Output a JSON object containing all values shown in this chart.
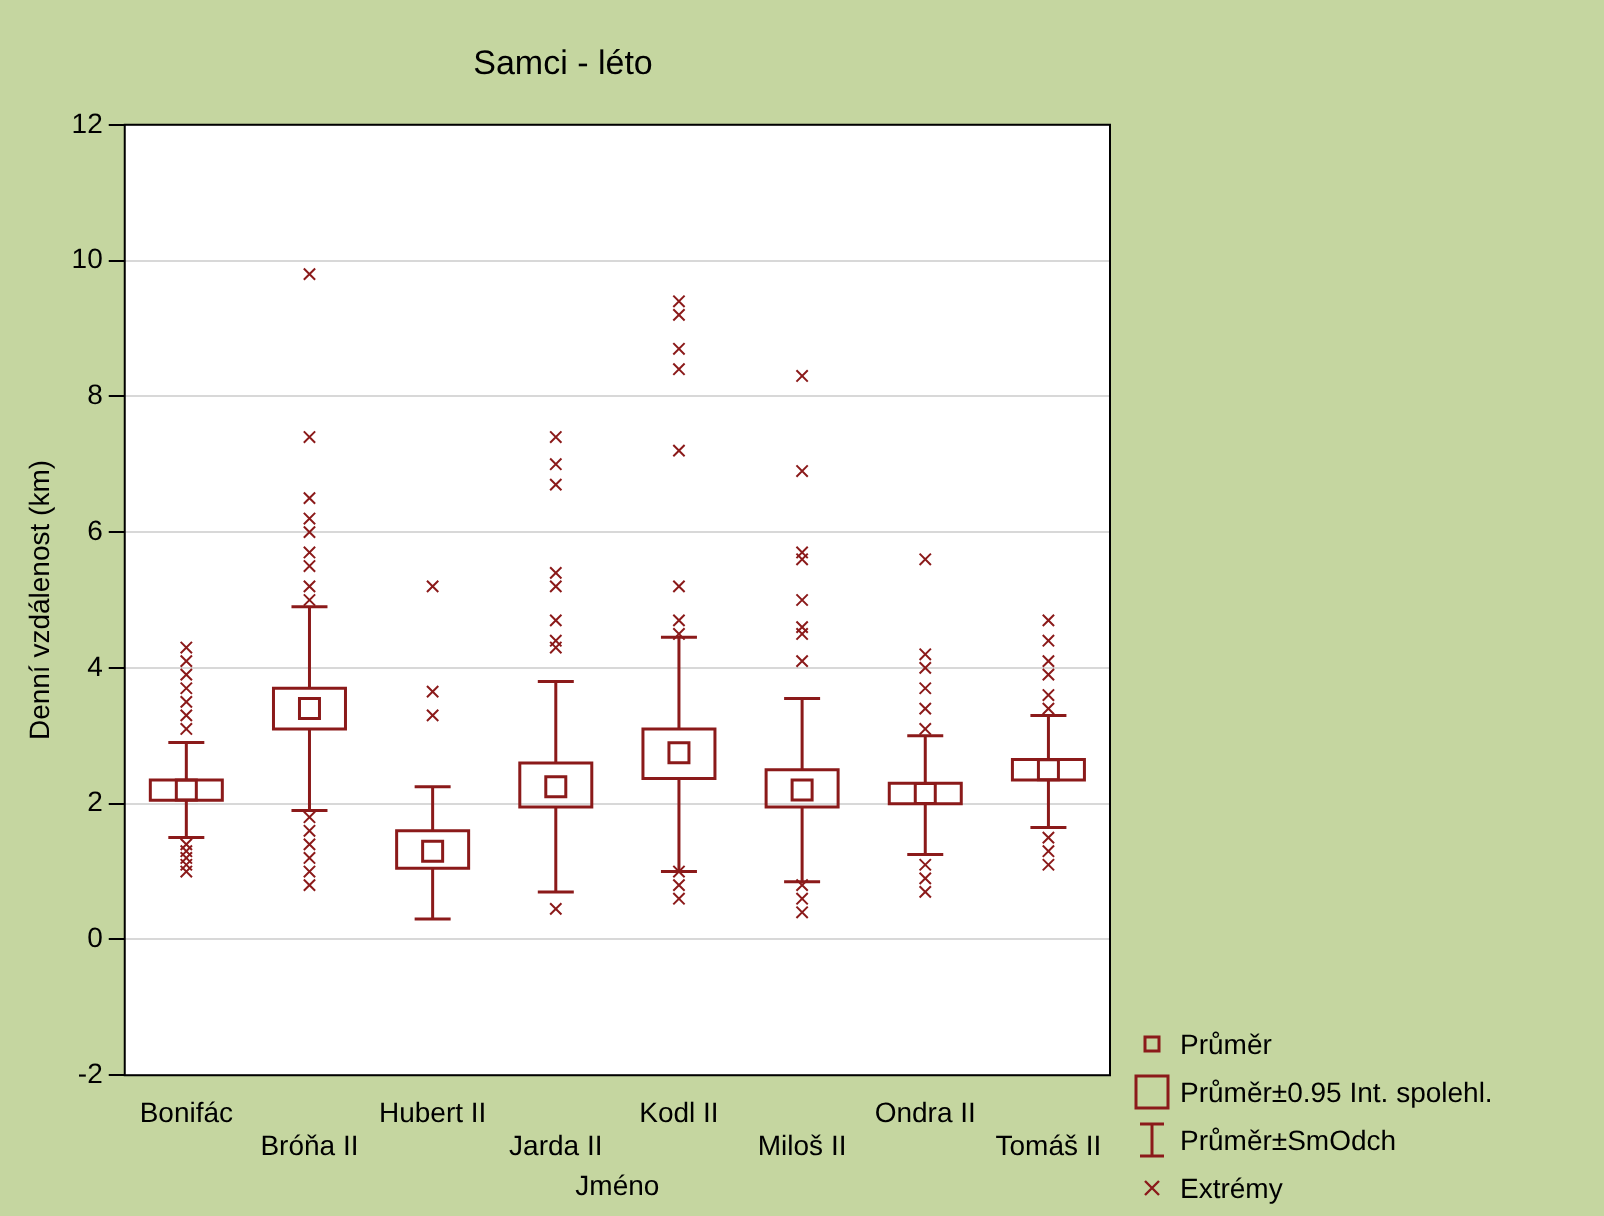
{
  "chart_data": {
    "type": "box",
    "title": "Samci - léto",
    "xlabel": "Jméno",
    "ylabel": "Denní vzdálenost (km)",
    "categories": [
      "Bonifác",
      "Bróňa II",
      "Hubert II",
      "Jarda II",
      "Kodl II",
      "Miloš II",
      "Ondra II",
      "Tomáš II"
    ],
    "color": "#8b1a1a",
    "boxes": [
      {
        "low": 1.5,
        "q1": 2.05,
        "median": 2.2,
        "q3": 2.35,
        "high": 2.9,
        "outliers": [
          1.0,
          1.1,
          1.2,
          1.3,
          1.4,
          3.1,
          3.3,
          3.5,
          3.7,
          3.9,
          4.1,
          4.3
        ]
      },
      {
        "low": 1.9,
        "q1": 3.1,
        "median": 3.4,
        "q3": 3.7,
        "high": 4.9,
        "outliers": [
          0.8,
          1.0,
          1.2,
          1.4,
          1.6,
          1.8,
          5.0,
          5.2,
          5.5,
          5.7,
          6.0,
          6.2,
          6.5,
          7.4,
          9.8
        ]
      },
      {
        "low": 0.3,
        "q1": 1.05,
        "median": 1.3,
        "q3": 1.6,
        "high": 2.25,
        "outliers": [
          3.3,
          3.65,
          5.2
        ]
      },
      {
        "low": 0.7,
        "q1": 1.95,
        "median": 2.25,
        "q3": 2.6,
        "high": 3.8,
        "outliers": [
          0.45,
          4.3,
          4.4,
          4.7,
          5.2,
          5.4,
          6.7,
          7.0,
          7.4
        ]
      },
      {
        "low": 1.0,
        "q1": 2.37,
        "median": 2.75,
        "q3": 3.1,
        "high": 4.45,
        "outliers": [
          0.6,
          0.8,
          1.0,
          4.5,
          4.7,
          5.2,
          7.2,
          8.4,
          8.7,
          9.2,
          9.4
        ]
      },
      {
        "low": 0.85,
        "q1": 1.95,
        "median": 2.2,
        "q3": 2.5,
        "high": 3.55,
        "outliers": [
          0.4,
          0.6,
          0.8,
          4.1,
          4.5,
          4.6,
          5.0,
          5.6,
          5.7,
          6.9,
          8.3
        ]
      },
      {
        "low": 1.25,
        "q1": 2.0,
        "median": 2.15,
        "q3": 2.3,
        "high": 3.0,
        "outliers": [
          0.7,
          0.9,
          1.1,
          3.1,
          3.4,
          3.7,
          4.0,
          4.2,
          5.6
        ]
      },
      {
        "low": 1.65,
        "q1": 2.35,
        "median": 2.5,
        "q3": 2.65,
        "high": 3.3,
        "outliers": [
          1.1,
          1.3,
          1.5,
          3.4,
          3.6,
          3.9,
          4.1,
          4.4,
          4.7
        ]
      }
    ],
    "ylim": [
      -2,
      12
    ],
    "yticks": [
      -2,
      0,
      2,
      4,
      6,
      8,
      10,
      12
    ],
    "grid": "y",
    "marker": "cross",
    "annotations": [
      "Průměr",
      "Průměr±0.95 Int. spolehl.",
      "Průměr±SmOdch",
      "Extrémy"
    ]
  }
}
